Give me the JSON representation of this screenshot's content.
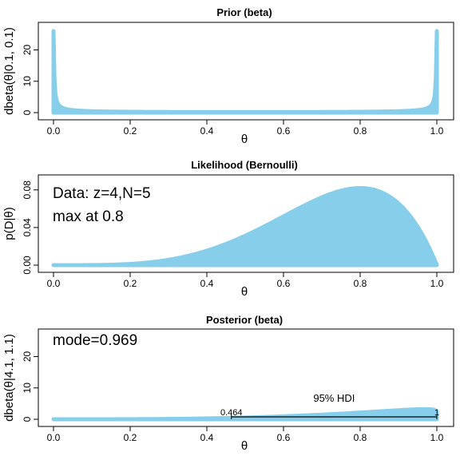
{
  "chart_data": [
    {
      "type": "area",
      "title": "Prior (beta)",
      "xlabel": "θ",
      "ylabel": "dbeta(θ|0.1, 0.1)",
      "distribution": {
        "family": "beta",
        "a": 0.1,
        "b": 0.1
      },
      "xlim": [
        0,
        1
      ],
      "ylim": [
        0,
        27
      ],
      "xticks": [
        "0.0",
        "0.2",
        "0.4",
        "0.6",
        "0.8",
        "1.0"
      ],
      "yticks": [
        "0",
        "10",
        "20"
      ],
      "yticks_values": [
        0,
        10,
        20
      ],
      "y_clip_max": 26,
      "fill_color": "#87CEEB",
      "annotations": []
    },
    {
      "type": "area",
      "title": "Likelihood (Bernoulli)",
      "xlabel": "θ",
      "ylabel": "p(D|θ)",
      "distribution": {
        "family": "bernoulli_likelihood",
        "z": 4,
        "N": 5
      },
      "xlim": [
        0,
        1
      ],
      "ylim": [
        0,
        0.09
      ],
      "xticks": [
        "0.0",
        "0.2",
        "0.4",
        "0.6",
        "0.8",
        "1.0"
      ],
      "yticks": [
        "0.00",
        "0.04",
        "0.08"
      ],
      "yticks_values": [
        0,
        0.04,
        0.08
      ],
      "fill_color": "#87CEEB",
      "annotations": [
        "Data: z=4,N=5",
        "max at 0.8"
      ]
    },
    {
      "type": "area",
      "title": "Posterior (beta)",
      "xlabel": "θ",
      "ylabel": "dbeta(θ|4.1, 1.1)",
      "distribution": {
        "family": "beta",
        "a": 4.1,
        "b": 1.1
      },
      "xlim": [
        0,
        1
      ],
      "ylim": [
        0,
        27
      ],
      "xticks": [
        "0.0",
        "0.2",
        "0.4",
        "0.6",
        "0.8",
        "1.0"
      ],
      "yticks": [
        "0",
        "10",
        "20"
      ],
      "yticks_values": [
        0,
        10,
        20
      ],
      "fill_color": "#87CEEB",
      "annotations": [
        "mode=0.969"
      ],
      "hdi": {
        "label": "95% HDI",
        "low": 0.464,
        "high": 1,
        "low_label": "0.464",
        "high_label": "1"
      }
    }
  ]
}
